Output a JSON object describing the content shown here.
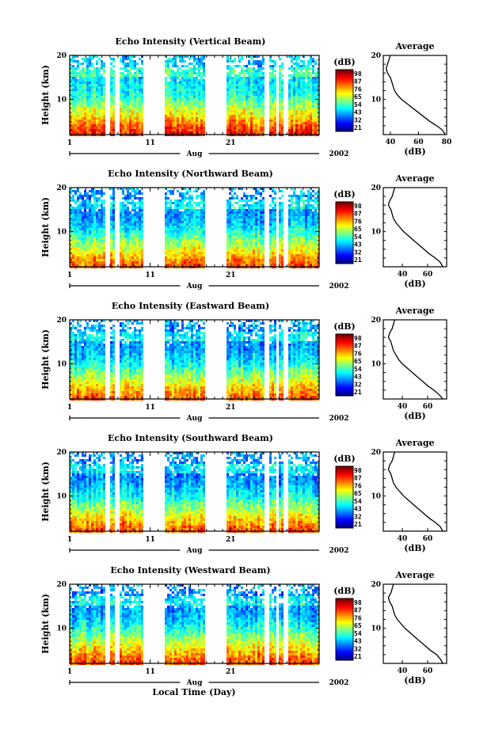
{
  "figure": {
    "xaxis_label": "Local Time (Day)"
  },
  "chart_data": [
    {
      "type": "heatmap",
      "title": "Echo Intensity (Vertical Beam)",
      "ylabel": "Height (km)",
      "ylim": [
        2,
        20
      ],
      "yticks": [
        10,
        20
      ],
      "xlim": [
        1,
        32
      ],
      "xticks": [
        1,
        11,
        21
      ],
      "month_label": "Aug",
      "year_label": "2002",
      "colorbar": {
        "unit": "(dB)",
        "ticks": [
          21,
          32,
          43,
          54,
          65,
          76,
          87,
          98
        ]
      },
      "data_gaps_days": [
        [
          5.4,
          5.9
        ],
        [
          6.6,
          7.1
        ],
        [
          10.2,
          12.8
        ],
        [
          17.8,
          20.5
        ],
        [
          25.3,
          25.8
        ],
        [
          26.6,
          27.0
        ],
        [
          27.6,
          28.3
        ]
      ],
      "average_profile": {
        "title": "Average",
        "xlabel": "(dB)",
        "xlim": [
          35,
          80
        ],
        "xticks": [
          40,
          60,
          80
        ],
        "ylim": [
          2,
          20
        ],
        "height_km": [
          2,
          3,
          4,
          5,
          6,
          7,
          8,
          9,
          10,
          11,
          12,
          13,
          14,
          15,
          16,
          17,
          18,
          19,
          20
        ],
        "intensity_db": [
          79,
          77,
          73,
          68,
          64,
          60,
          56,
          52,
          48,
          45,
          43,
          42,
          41,
          40,
          38,
          37,
          38,
          39,
          40
        ]
      }
    },
    {
      "type": "heatmap",
      "title": "Echo Intensity (Northward Beam)",
      "ylabel": "Height (km)",
      "ylim": [
        2,
        20
      ],
      "yticks": [
        10,
        20
      ],
      "xlim": [
        1,
        32
      ],
      "xticks": [
        1,
        11,
        21
      ],
      "month_label": "Aug",
      "year_label": "2002",
      "colorbar": {
        "unit": "(dB)",
        "ticks": [
          21,
          32,
          43,
          54,
          65,
          76,
          87,
          98
        ]
      },
      "data_gaps_days": [
        [
          5.4,
          5.9
        ],
        [
          6.6,
          7.1
        ],
        [
          10.2,
          12.8
        ],
        [
          17.8,
          20.5
        ],
        [
          25.3,
          25.8
        ],
        [
          26.6,
          27.0
        ],
        [
          27.6,
          28.3
        ]
      ],
      "average_profile": {
        "title": "Average",
        "xlabel": "(dB)",
        "xlim": [
          25,
          75
        ],
        "xticks": [
          40,
          60
        ],
        "ylim": [
          2,
          20
        ],
        "height_km": [
          2,
          3,
          4,
          5,
          6,
          7,
          8,
          9,
          10,
          11,
          12,
          13,
          14,
          15,
          16,
          17,
          18,
          19,
          20
        ],
        "intensity_db": [
          72,
          70,
          66,
          61,
          57,
          53,
          49,
          45,
          41,
          38,
          35,
          33,
          32,
          31,
          29,
          30,
          32,
          33,
          34
        ]
      }
    },
    {
      "type": "heatmap",
      "title": "Echo Intensity (Eastward Beam)",
      "ylabel": "Height (km)",
      "ylim": [
        2,
        20
      ],
      "yticks": [
        10,
        20
      ],
      "xlim": [
        1,
        32
      ],
      "xticks": [
        1,
        11,
        21
      ],
      "month_label": "Aug",
      "year_label": "2002",
      "colorbar": {
        "unit": "(dB)",
        "ticks": [
          21,
          32,
          43,
          54,
          65,
          76,
          87,
          98
        ]
      },
      "data_gaps_days": [
        [
          5.4,
          5.9
        ],
        [
          6.6,
          7.1
        ],
        [
          10.2,
          12.8
        ],
        [
          17.8,
          20.5
        ],
        [
          25.3,
          25.8
        ],
        [
          26.6,
          27.0
        ],
        [
          27.6,
          28.3
        ]
      ],
      "average_profile": {
        "title": "Average",
        "xlabel": "(dB)",
        "xlim": [
          25,
          75
        ],
        "xticks": [
          40,
          60
        ],
        "ylim": [
          2,
          20
        ],
        "height_km": [
          2,
          3,
          4,
          5,
          6,
          7,
          8,
          9,
          10,
          11,
          12,
          13,
          14,
          15,
          16,
          17,
          18,
          19,
          20
        ],
        "intensity_db": [
          72,
          69,
          65,
          60,
          56,
          52,
          48,
          44,
          40,
          37,
          35,
          33,
          32,
          31,
          29,
          30,
          32,
          33,
          34
        ]
      }
    },
    {
      "type": "heatmap",
      "title": "Echo Intensity (Southward Beam)",
      "ylabel": "Height (km)",
      "ylim": [
        2,
        20
      ],
      "yticks": [
        10,
        20
      ],
      "xlim": [
        1,
        32
      ],
      "xticks": [
        1,
        11,
        21
      ],
      "month_label": "Aug",
      "year_label": "2002",
      "colorbar": {
        "unit": "(dB)",
        "ticks": [
          21,
          32,
          43,
          54,
          65,
          76,
          87,
          98
        ]
      },
      "data_gaps_days": [
        [
          5.4,
          5.9
        ],
        [
          6.6,
          7.1
        ],
        [
          10.2,
          12.8
        ],
        [
          17.8,
          20.5
        ],
        [
          25.3,
          25.8
        ],
        [
          26.6,
          27.0
        ],
        [
          27.6,
          28.3
        ]
      ],
      "average_profile": {
        "title": "Average",
        "xlabel": "(dB)",
        "xlim": [
          25,
          75
        ],
        "xticks": [
          40,
          60
        ],
        "ylim": [
          2,
          20
        ],
        "height_km": [
          2,
          3,
          4,
          5,
          6,
          7,
          8,
          9,
          10,
          11,
          12,
          13,
          14,
          15,
          16,
          17,
          18,
          19,
          20
        ],
        "intensity_db": [
          72,
          70,
          66,
          61,
          57,
          53,
          49,
          45,
          41,
          38,
          35,
          33,
          32,
          31,
          29,
          30,
          32,
          33,
          34
        ]
      }
    },
    {
      "type": "heatmap",
      "title": "Echo Intensity (Westward Beam)",
      "ylabel": "Height (km)",
      "ylim": [
        2,
        20
      ],
      "yticks": [
        10,
        20
      ],
      "xlim": [
        1,
        32
      ],
      "xticks": [
        1,
        11,
        21
      ],
      "month_label": "Aug",
      "year_label": "2002",
      "colorbar": {
        "unit": "(dB)",
        "ticks": [
          21,
          32,
          43,
          54,
          65,
          76,
          87,
          98
        ]
      },
      "data_gaps_days": [
        [
          5.4,
          5.9
        ],
        [
          6.6,
          7.1
        ],
        [
          10.2,
          12.8
        ],
        [
          17.8,
          20.5
        ],
        [
          25.3,
          25.8
        ],
        [
          26.6,
          27.0
        ],
        [
          27.6,
          28.3
        ]
      ],
      "average_profile": {
        "title": "Average",
        "xlabel": "(dB)",
        "xlim": [
          25,
          75
        ],
        "xticks": [
          40,
          60
        ],
        "ylim": [
          2,
          20
        ],
        "height_km": [
          2,
          3,
          4,
          5,
          6,
          7,
          8,
          9,
          10,
          11,
          12,
          13,
          14,
          15,
          16,
          17,
          18,
          19,
          20
        ],
        "intensity_db": [
          72,
          70,
          67,
          62,
          58,
          54,
          50,
          46,
          42,
          39,
          36,
          34,
          33,
          32,
          30,
          29,
          31,
          32,
          33
        ]
      }
    }
  ]
}
